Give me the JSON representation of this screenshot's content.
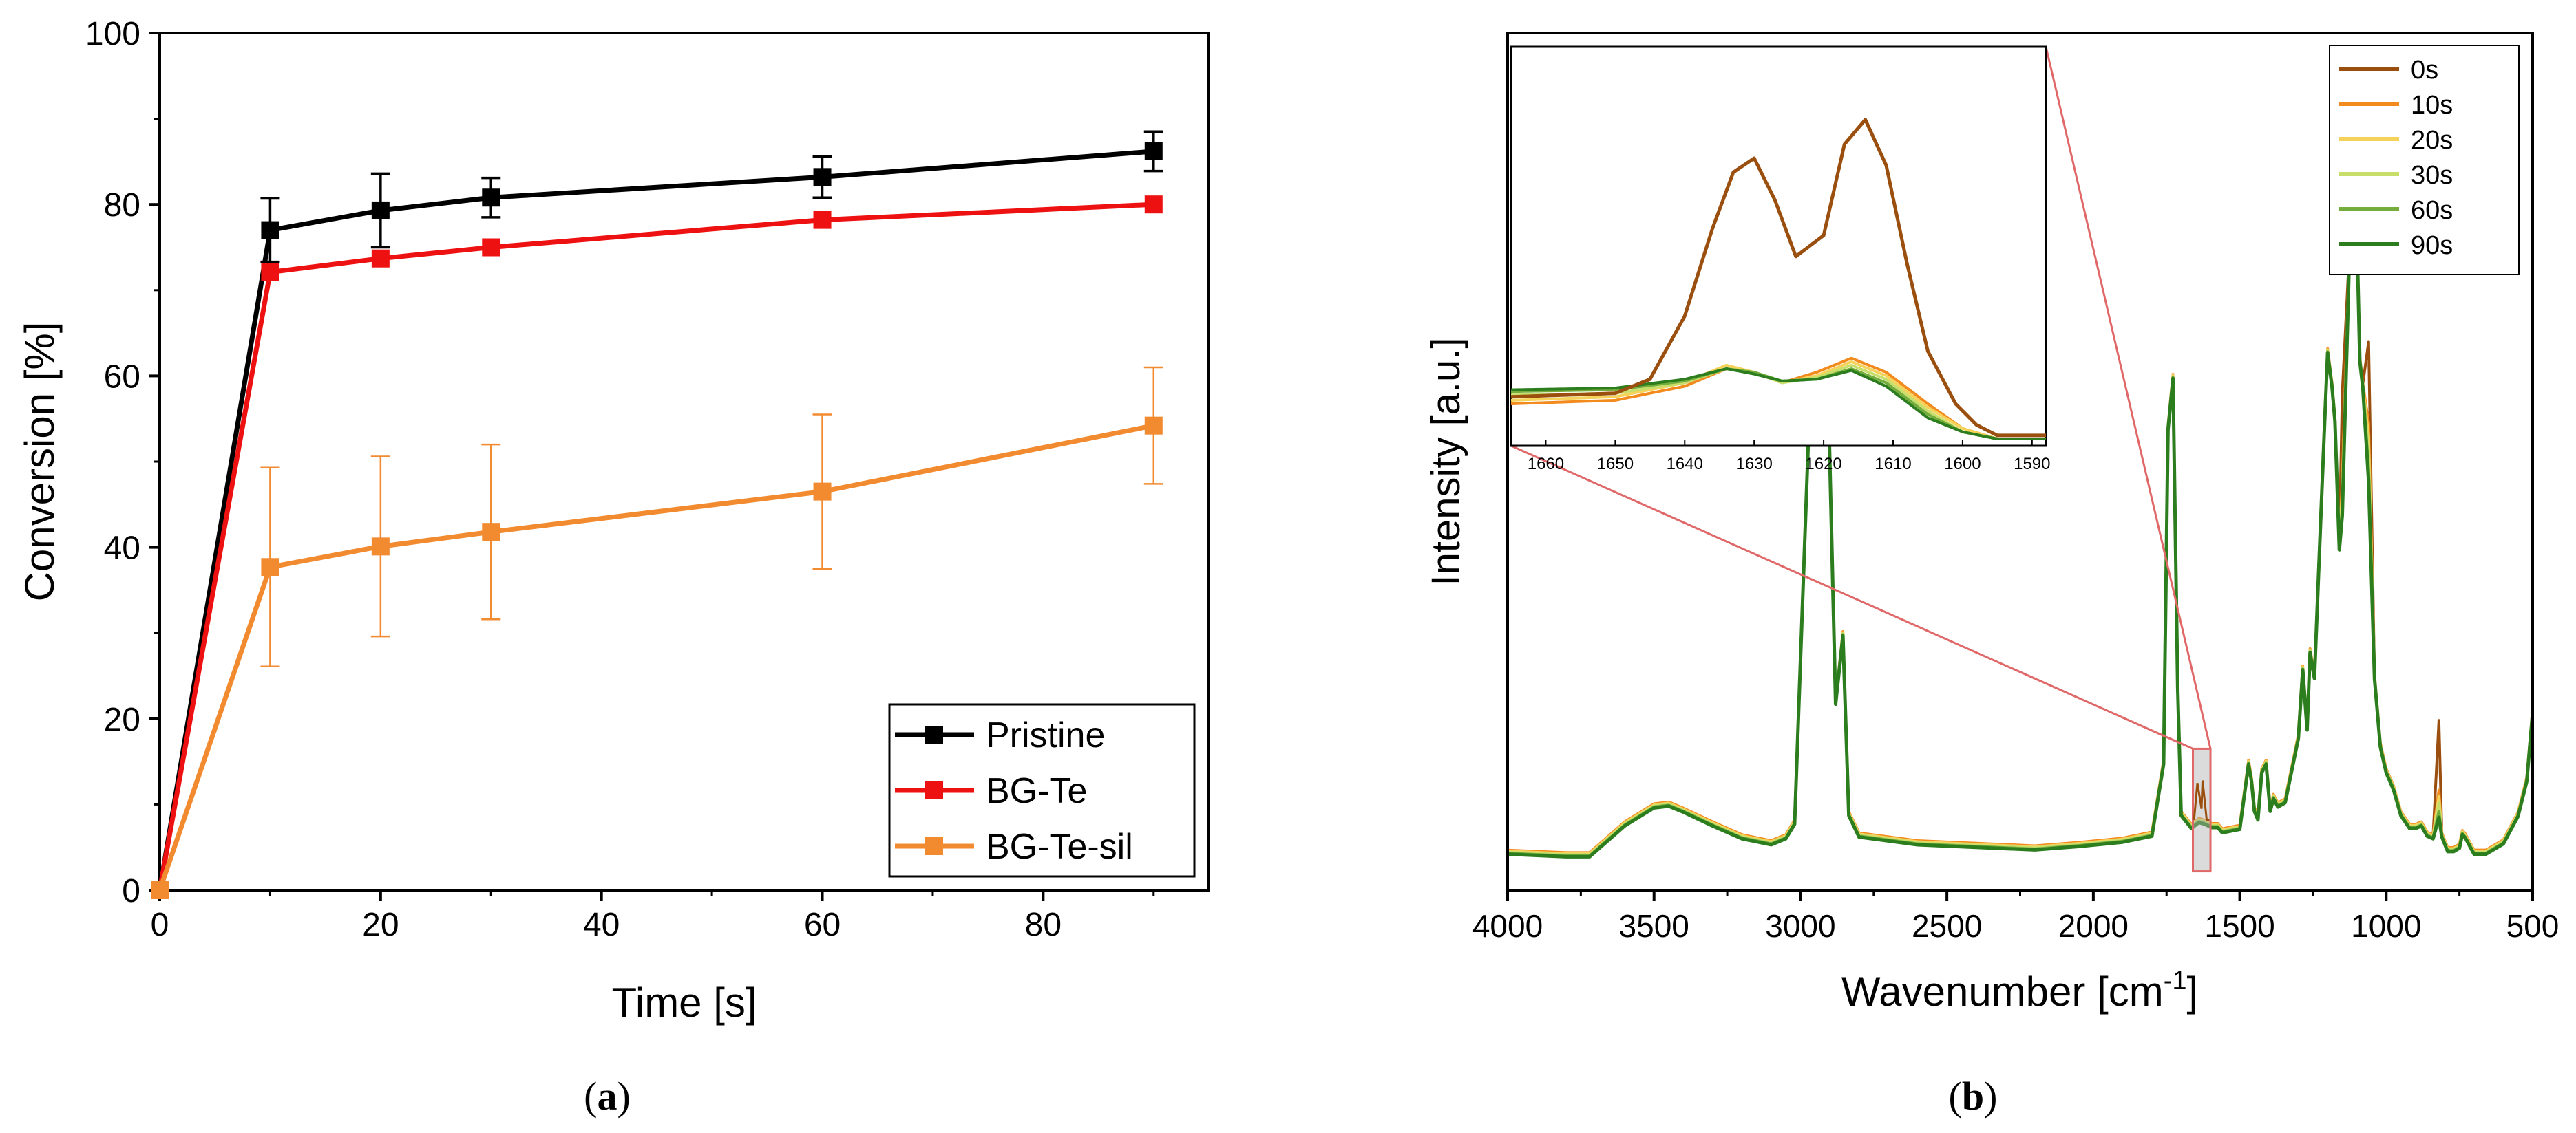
{
  "chart_data": [
    {
      "type": "line",
      "panel": "a",
      "caption": "(a)",
      "caption_open": "(",
      "caption_letter": "a",
      "caption_close": ")",
      "xlabel": "Time [s]",
      "ylabel": "Conversion [%]",
      "xlim": [
        0,
        95
      ],
      "ylim": [
        0,
        100
      ],
      "xticks": [
        0,
        20,
        40,
        60,
        80
      ],
      "yticks": [
        0,
        20,
        40,
        60,
        80,
        100
      ],
      "grid": false,
      "legend_position": "bottom-right",
      "x": [
        0,
        10,
        20,
        30,
        60,
        90
      ],
      "series": [
        {
          "name": "Pristine",
          "color": "#000000",
          "values": [
            0,
            77,
            79.3,
            80.8,
            83.2,
            86.2
          ],
          "errors": [
            0,
            3.7,
            4.3,
            2.3,
            2.4,
            2.3
          ]
        },
        {
          "name": "BG-Te",
          "color": "#ee1111",
          "values": [
            0,
            72.1,
            73.7,
            75,
            78.2,
            80
          ],
          "errors": [
            0,
            0,
            0,
            0,
            0,
            0
          ]
        },
        {
          "name": "BG-Te-sil",
          "color": "#f28a30",
          "values": [
            0,
            37.7,
            40.1,
            41.8,
            46.5,
            54.2
          ],
          "errors": [
            0,
            11.6,
            10.5,
            10.2,
            9,
            6.8
          ]
        }
      ]
    },
    {
      "type": "line",
      "panel": "b",
      "caption": "(b)",
      "caption_open": "(",
      "caption_letter": "b",
      "caption_close": ")",
      "xlabel_main": "Wavenumber [cm",
      "xlabel_sup": "-1",
      "xlabel_close": "]",
      "xlabel": "Wavenumber [cm-1]",
      "ylabel": "Intensity [a.u.]",
      "xlim": [
        4000,
        500
      ],
      "xticks": [
        4000,
        3500,
        3000,
        2500,
        2000,
        1500,
        1000,
        500
      ],
      "ylim": [
        0,
        100
      ],
      "grid": false,
      "legend_position": "top-right",
      "series": [
        {
          "name": "0s",
          "color": "#9b4f0f"
        },
        {
          "name": "10s",
          "color": "#f28a1e"
        },
        {
          "name": "20s",
          "color": "#f5d35a"
        },
        {
          "name": "30s",
          "color": "#c8de6a"
        },
        {
          "name": "60s",
          "color": "#74ad3c"
        },
        {
          "name": "90s",
          "color": "#2c7d1e"
        }
      ],
      "spectrum": {
        "baseline": [
          [
            4000,
            4.5
          ],
          [
            3800,
            4.2
          ],
          [
            3720,
            4.2
          ],
          [
            3650,
            6.3
          ],
          [
            3600,
            7.8
          ],
          [
            3500,
            9.9
          ],
          [
            3450,
            10.1
          ],
          [
            3400,
            9.4
          ],
          [
            3300,
            7.8
          ],
          [
            3200,
            6.3
          ],
          [
            3100,
            5.6
          ],
          [
            3050,
            6.3
          ],
          [
            3020,
            8
          ],
          [
            2955,
            70
          ],
          [
            2938,
            58
          ],
          [
            2923,
            81
          ],
          [
            2905,
            58
          ],
          [
            2880,
            22
          ],
          [
            2855,
            30
          ],
          [
            2835,
            9
          ],
          [
            2800,
            6.5
          ],
          [
            2600,
            5.6
          ],
          [
            2400,
            5.3
          ],
          [
            2200,
            5
          ],
          [
            2050,
            5.4
          ],
          [
            1900,
            5.9
          ],
          [
            1800,
            6.6
          ],
          [
            1760,
            15
          ],
          [
            1745,
            54
          ],
          [
            1728,
            60
          ],
          [
            1712,
            24
          ],
          [
            1700,
            9
          ],
          [
            1665,
            7.5
          ],
          [
            1640,
            8.2
          ],
          [
            1620,
            8
          ],
          [
            1595,
            7.6
          ],
          [
            1575,
            7.6
          ],
          [
            1560,
            7
          ],
          [
            1500,
            7.4
          ],
          [
            1470,
            15
          ],
          [
            1460,
            13
          ],
          [
            1450,
            9.5
          ],
          [
            1438,
            8.5
          ],
          [
            1425,
            14
          ],
          [
            1410,
            15
          ],
          [
            1396,
            9.5
          ],
          [
            1385,
            11
          ],
          [
            1370,
            10
          ],
          [
            1345,
            10.5
          ],
          [
            1300,
            18
          ],
          [
            1285,
            26
          ],
          [
            1270,
            19
          ],
          [
            1260,
            28
          ],
          [
            1245,
            25
          ],
          [
            1230,
            38
          ],
          [
            1210,
            55
          ],
          [
            1200,
            63
          ],
          [
            1185,
            59
          ],
          [
            1175,
            55
          ],
          [
            1160,
            40
          ],
          [
            1150,
            44
          ],
          [
            1125,
            75
          ],
          [
            1115,
            92
          ],
          [
            1105,
            84
          ],
          [
            1090,
            62
          ],
          [
            1080,
            59
          ],
          [
            1060,
            48
          ],
          [
            1040,
            25
          ],
          [
            1020,
            17
          ],
          [
            1000,
            14
          ],
          [
            975,
            12
          ],
          [
            950,
            9
          ],
          [
            920,
            7.5
          ],
          [
            900,
            7.5
          ],
          [
            880,
            7.8
          ],
          [
            860,
            6.6
          ],
          [
            840,
            6.3
          ],
          [
            820,
            8.8
          ],
          [
            810,
            6.5
          ],
          [
            790,
            4.8
          ],
          [
            770,
            4.8
          ],
          [
            750,
            5.2
          ],
          [
            740,
            6.8
          ],
          [
            730,
            6.4
          ],
          [
            700,
            4.5
          ],
          [
            660,
            4.5
          ],
          [
            600,
            5.7
          ],
          [
            550,
            8.9
          ],
          [
            520,
            13
          ],
          [
            500,
            21
          ]
        ],
        "main_offsets": [
          [
            2938,
            0,
            0
          ],
          [
            1732,
            0,
            0
          ],
          [
            1725,
            0,
            0
          ],
          [
            1640,
            0,
            0
          ],
          [
            1620,
            0,
            0
          ],
          [
            1420,
            15,
            14
          ],
          [
            1277,
            8,
            8
          ],
          [
            1205,
            12,
            8
          ],
          [
            1195,
            11,
            8
          ],
          [
            1180,
            2,
            2
          ],
          [
            1150,
            14,
            8
          ],
          [
            1115,
            2,
            1
          ],
          [
            1060,
            16,
            14
          ],
          [
            990,
            10,
            8
          ],
          [
            820,
            11,
            6
          ]
        ],
        "shaded_region": [
          1660,
          1600
        ],
        "inset": {
          "xlim": [
            1665,
            1588
          ],
          "xticks": [
            1660,
            1650,
            1640,
            1630,
            1620,
            1610,
            1600,
            1590
          ],
          "series": {
            "0s": [
              [
                1665,
                12
              ],
              [
                1650,
                13
              ],
              [
                1645,
                17
              ],
              [
                1640,
                35
              ],
              [
                1636,
                60
              ],
              [
                1633,
                76
              ],
              [
                1630,
                80
              ],
              [
                1627,
                68
              ],
              [
                1624,
                52
              ],
              [
                1620,
                58
              ],
              [
                1617,
                84
              ],
              [
                1614,
                91
              ],
              [
                1611,
                78
              ],
              [
                1608,
                50
              ],
              [
                1605,
                25
              ],
              [
                1601,
                10
              ],
              [
                1598,
                4
              ],
              [
                1595,
                1
              ],
              [
                1590,
                1
              ]
            ],
            "10s": [
              [
                1665,
                10
              ],
              [
                1650,
                11
              ],
              [
                1640,
                15
              ],
              [
                1634,
                20
              ],
              [
                1630,
                19
              ],
              [
                1626,
                16
              ],
              [
                1621,
                19
              ],
              [
                1616,
                23
              ],
              [
                1611,
                19
              ],
              [
                1605,
                10
              ],
              [
                1600,
                3
              ],
              [
                1595,
                0
              ],
              [
                1590,
                0
              ]
            ],
            "20s": [
              [
                1665,
                11
              ],
              [
                1650,
                12
              ],
              [
                1640,
                16
              ],
              [
                1634,
                21
              ],
              [
                1630,
                19
              ],
              [
                1626,
                16
              ],
              [
                1621,
                18
              ],
              [
                1616,
                22
              ],
              [
                1611,
                18
              ],
              [
                1605,
                9
              ],
              [
                1600,
                3
              ],
              [
                1595,
                0
              ],
              [
                1590,
                0
              ]
            ],
            "30s": [
              [
                1665,
                12.5
              ],
              [
                1650,
                13
              ],
              [
                1640,
                16
              ],
              [
                1634,
                20
              ],
              [
                1630,
                19
              ],
              [
                1626,
                16
              ],
              [
                1621,
                17.5
              ],
              [
                1616,
                21
              ],
              [
                1611,
                17
              ],
              [
                1605,
                8
              ],
              [
                1600,
                2
              ],
              [
                1595,
                0
              ],
              [
                1590,
                0
              ]
            ],
            "60s": [
              [
                1665,
                13.5
              ],
              [
                1650,
                14
              ],
              [
                1640,
                16.5
              ],
              [
                1634,
                20
              ],
              [
                1630,
                19
              ],
              [
                1626,
                16.5
              ],
              [
                1621,
                17
              ],
              [
                1616,
                20
              ],
              [
                1611,
                16
              ],
              [
                1605,
                7
              ],
              [
                1600,
                2
              ],
              [
                1595,
                0
              ],
              [
                1590,
                0
              ]
            ],
            "90s": [
              [
                1665,
                14
              ],
              [
                1650,
                14.5
              ],
              [
                1640,
                17
              ],
              [
                1634,
                20
              ],
              [
                1630,
                18.5
              ],
              [
                1626,
                16.5
              ],
              [
                1621,
                17
              ],
              [
                1616,
                19.5
              ],
              [
                1611,
                15
              ],
              [
                1605,
                6
              ],
              [
                1600,
                2
              ],
              [
                1595,
                0
              ],
              [
                1590,
                0
              ]
            ]
          }
        }
      }
    }
  ]
}
